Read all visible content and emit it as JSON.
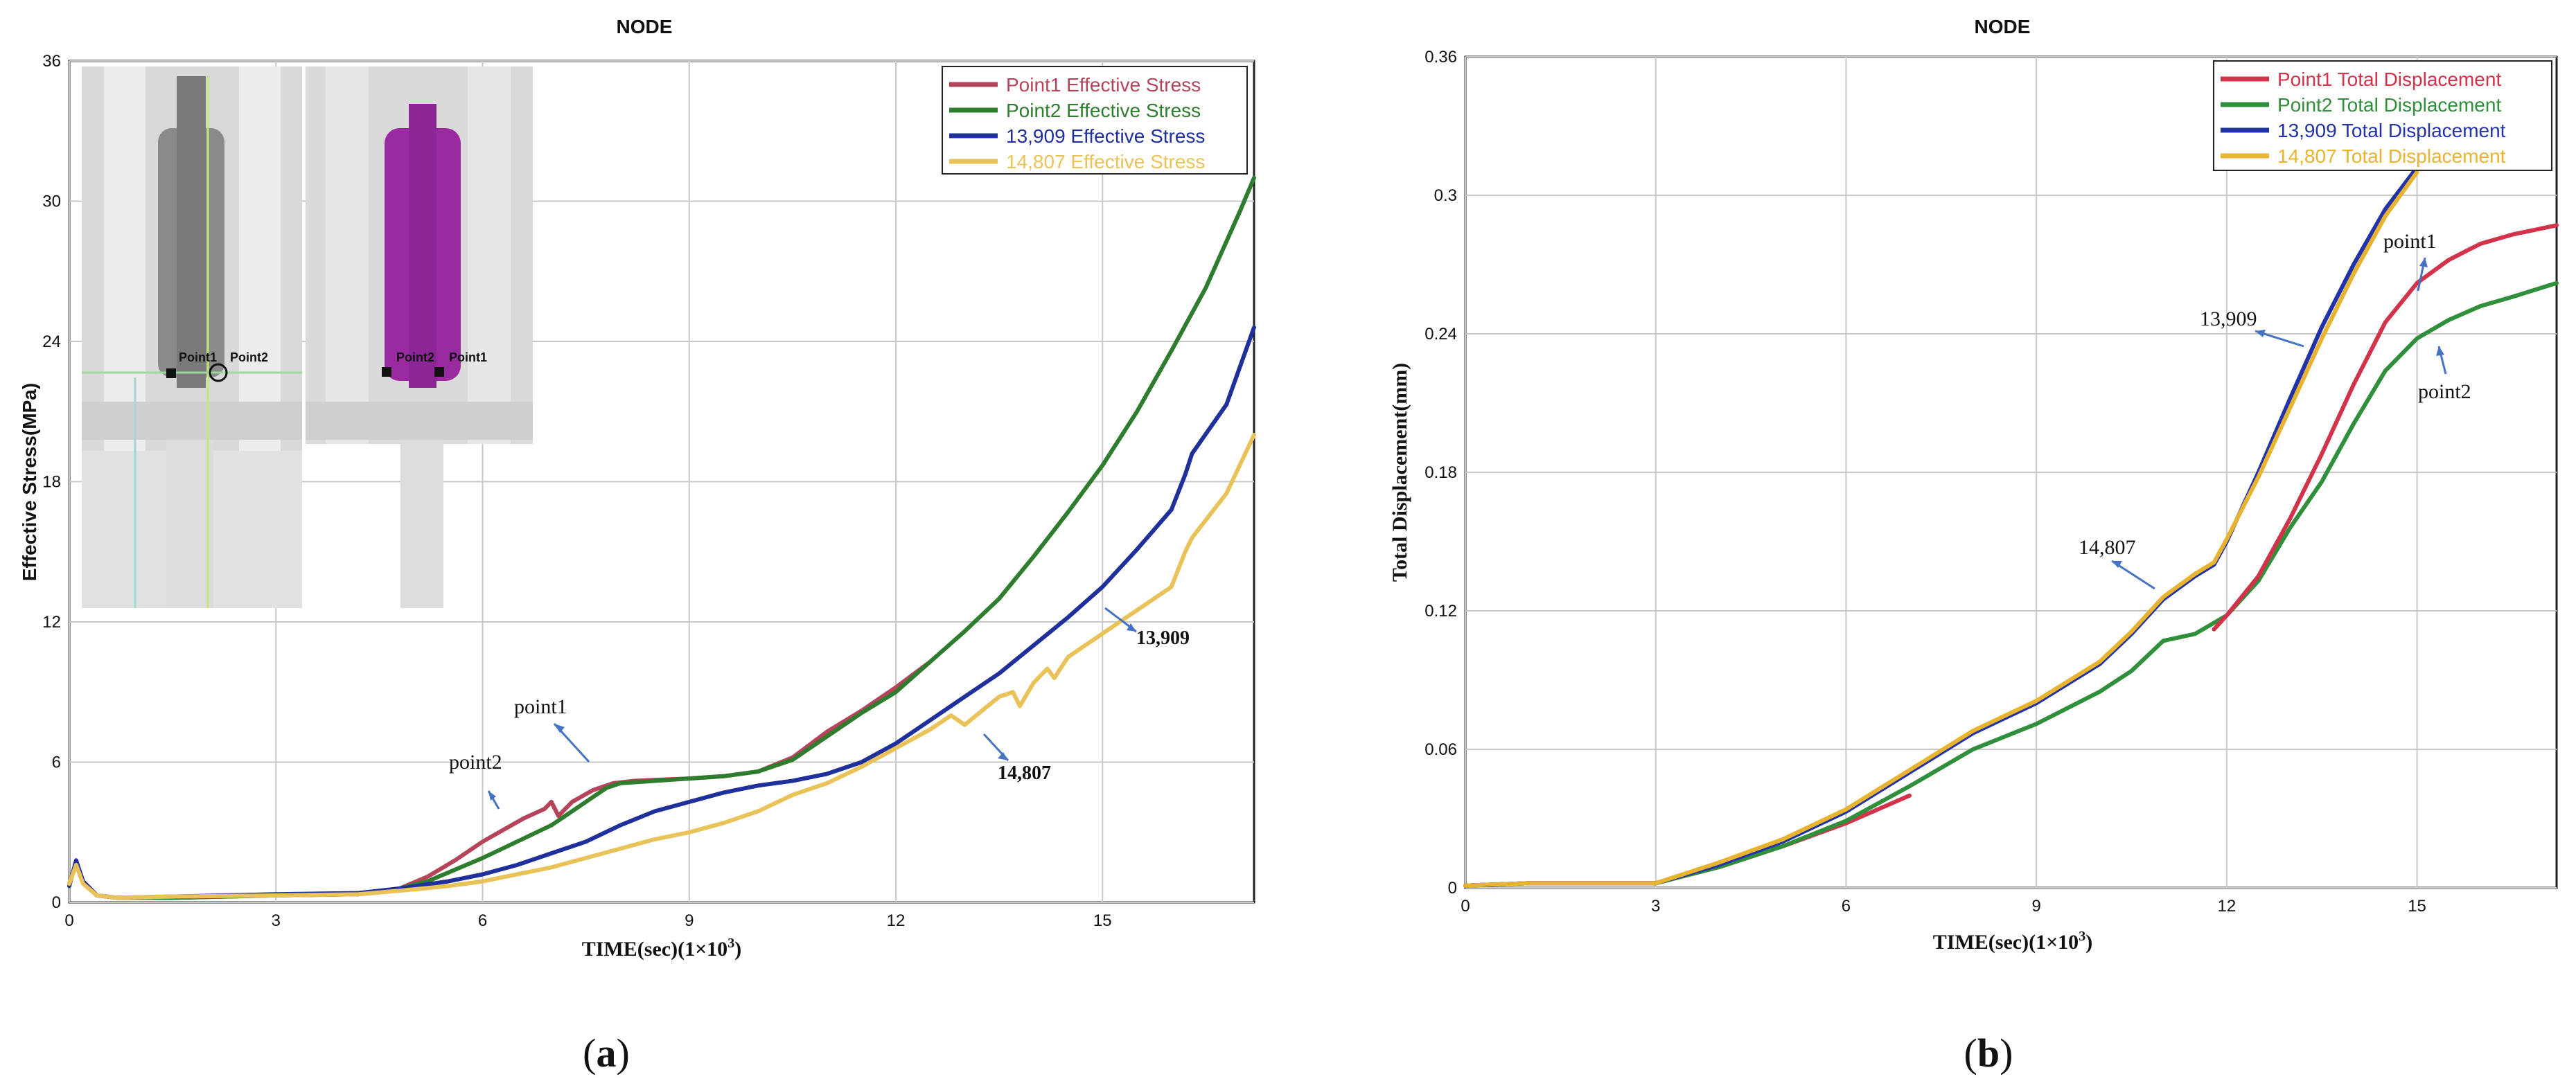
{
  "chart_data": [
    {
      "type": "line",
      "title": "NODE",
      "xlabel": "TIME(sec)(1×10",
      "xlabel_sup": "3",
      "xlabel_end": ")",
      "ylabel": "Effective Stress(MPa)",
      "xlim": [
        0,
        17.2
      ],
      "ylim": [
        0,
        36
      ],
      "xticks": [
        "0",
        "3",
        "6",
        "9",
        "12",
        "15"
      ],
      "xtick_values": [
        0,
        3,
        6,
        9,
        12,
        15
      ],
      "yticks": [
        "0",
        "6",
        "12",
        "18",
        "24",
        "30",
        "36"
      ],
      "ytick_values": [
        0,
        6,
        12,
        18,
        24,
        30,
        36
      ],
      "grid": true,
      "legend_position": "top-right",
      "caption_open": "(",
      "caption_letter": "a",
      "caption_close": ")",
      "series": [
        {
          "name": "Point1 Effective Stress",
          "color": "#b5435a",
          "x": [
            0,
            0.1,
            0.2,
            0.4,
            0.7,
            1.5,
            3,
            4.2,
            4.8,
            5.2,
            5.6,
            6.0,
            6.3,
            6.6,
            6.9,
            7.0,
            7.1,
            7.3,
            7.6,
            7.9,
            8.2,
            8.6,
            9.0,
            9.5,
            10.0,
            10.5,
            11.0,
            11.5,
            12.0,
            12.5
          ],
          "y": [
            0.8,
            1.7,
            0.9,
            0.3,
            0.2,
            0.2,
            0.3,
            0.35,
            0.6,
            1.1,
            1.8,
            2.6,
            3.1,
            3.6,
            4.0,
            4.3,
            3.7,
            4.3,
            4.8,
            5.1,
            5.2,
            5.25,
            5.3,
            5.4,
            5.6,
            6.2,
            7.3,
            8.2,
            9.2,
            10.3
          ]
        },
        {
          "name": "Point2 Effective Stress",
          "color": "#2e7d2e",
          "x": [
            0,
            0.1,
            0.2,
            0.4,
            0.7,
            1.5,
            3,
            4.2,
            4.8,
            5.2,
            5.6,
            6.0,
            6.5,
            7.0,
            7.5,
            7.8,
            8.0,
            8.5,
            9.0,
            9.5,
            10.0,
            10.5,
            11.0,
            11.5,
            12.0,
            12.5,
            13.0,
            13.5,
            14.0,
            14.5,
            15.0,
            15.5,
            16.0,
            16.5,
            17.0,
            17.2
          ],
          "y": [
            0.8,
            1.7,
            0.9,
            0.3,
            0.2,
            0.2,
            0.3,
            0.35,
            0.6,
            0.9,
            1.4,
            1.9,
            2.6,
            3.3,
            4.3,
            4.9,
            5.1,
            5.2,
            5.3,
            5.4,
            5.6,
            6.1,
            7.1,
            8.1,
            9.0,
            10.3,
            11.6,
            13.0,
            14.8,
            16.7,
            18.7,
            21.0,
            23.6,
            26.3,
            29.6,
            31.0
          ]
        },
        {
          "name": "13,909 Effective Stress",
          "color": "#1f2f9c",
          "x": [
            0,
            0.1,
            0.2,
            0.4,
            0.7,
            1.5,
            3,
            4.2,
            4.8,
            5.5,
            6.0,
            6.5,
            7.0,
            7.5,
            8.0,
            8.5,
            9.0,
            9.5,
            10.0,
            10.5,
            11.0,
            11.5,
            12.0,
            12.5,
            13.0,
            13.5,
            14.0,
            14.5,
            15.0,
            15.5,
            16.0,
            16.2,
            16.3,
            16.8,
            17.2
          ],
          "y": [
            0.7,
            1.8,
            0.9,
            0.3,
            0.2,
            0.25,
            0.35,
            0.4,
            0.6,
            0.9,
            1.2,
            1.6,
            2.1,
            2.6,
            3.3,
            3.9,
            4.3,
            4.7,
            5.0,
            5.2,
            5.5,
            6.0,
            6.8,
            7.8,
            8.8,
            9.8,
            11.0,
            12.2,
            13.5,
            15.1,
            16.8,
            18.3,
            19.2,
            21.3,
            24.6
          ]
        },
        {
          "name": "14,807 Effective Stress",
          "color": "#e9c35a",
          "x": [
            0,
            0.1,
            0.2,
            0.4,
            0.7,
            1.5,
            3,
            4.2,
            4.8,
            5.5,
            6.0,
            6.5,
            7.0,
            7.5,
            8.0,
            8.5,
            9.0,
            9.5,
            10.0,
            10.5,
            11.0,
            11.5,
            12.0,
            12.5,
            12.8,
            13.0,
            13.5,
            13.7,
            13.8,
            14.0,
            14.2,
            14.3,
            14.5,
            15.0,
            15.5,
            16.0,
            16.2,
            16.3,
            16.8,
            17.2
          ],
          "y": [
            0.8,
            1.6,
            0.8,
            0.3,
            0.2,
            0.25,
            0.3,
            0.35,
            0.5,
            0.7,
            0.9,
            1.2,
            1.5,
            1.9,
            2.3,
            2.7,
            3.0,
            3.4,
            3.9,
            4.6,
            5.1,
            5.8,
            6.6,
            7.4,
            8.0,
            7.6,
            8.8,
            9.0,
            8.4,
            9.4,
            10.0,
            9.6,
            10.5,
            11.5,
            12.5,
            13.5,
            15.0,
            15.6,
            17.5,
            20.0
          ]
        }
      ],
      "annotations": [
        "point1",
        "point2",
        "13,909",
        "14,807"
      ],
      "inset_labels": [
        "Point1",
        "Point2",
        "Point2",
        "Point1"
      ]
    },
    {
      "type": "line",
      "title": "NODE",
      "xlabel": "TIME(sec)(1×10",
      "xlabel_sup": "3",
      "xlabel_end": ")",
      "ylabel": "Total Displacement(mm)",
      "xlim": [
        0,
        17.2
      ],
      "ylim": [
        0,
        0.36
      ],
      "xticks": [
        "0",
        "3",
        "6",
        "9",
        "12",
        "15"
      ],
      "xtick_values": [
        0,
        3,
        6,
        9,
        12,
        15
      ],
      "yticks": [
        "0",
        "0.06",
        "0.12",
        "0.18",
        "0.24",
        "0.3",
        "0.36"
      ],
      "ytick_values": [
        0,
        0.06,
        0.12,
        0.18,
        0.24,
        0.3,
        0.36
      ],
      "grid": true,
      "legend_position": "top-right",
      "caption_open": "(",
      "caption_letter": "b",
      "caption_close": ")",
      "series": [
        {
          "name": "Point1 Total Displacement",
          "color": "#d2334a",
          "x": [
            0,
            1,
            3,
            4,
            5,
            6,
            6.5,
            7.0
          ],
          "y": [
            0.001,
            0.002,
            0.002,
            0.009,
            0.018,
            0.028,
            0.034,
            0.04
          ]
        },
        {
          "name": "Point2 Total Displacement",
          "color": "#2f8f3a",
          "x": [
            0,
            1,
            3,
            4,
            5,
            6,
            7,
            8,
            9,
            10,
            10.5,
            11,
            11.5,
            12,
            12.5,
            13,
            13.5,
            14,
            14.5,
            15,
            15.5,
            16,
            16.5,
            17.2
          ],
          "y": [
            0.001,
            0.002,
            0.002,
            0.009,
            0.018,
            0.029,
            0.044,
            0.06,
            0.071,
            0.085,
            0.094,
            0.107,
            0.11,
            0.118,
            0.133,
            0.156,
            0.176,
            0.201,
            0.224,
            0.238,
            0.246,
            0.252,
            0.256,
            0.262
          ]
        },
        {
          "name": "13,909 Total Displacement",
          "color": "#2233aa",
          "x": [
            0,
            1,
            3,
            4,
            5,
            6,
            7,
            8,
            9,
            10,
            10.5,
            11,
            11.5,
            11.8,
            12.0,
            12.5,
            13.0,
            13.5,
            14.0,
            14.5,
            15.0
          ],
          "y": [
            0.001,
            0.002,
            0.002,
            0.01,
            0.02,
            0.033,
            0.05,
            0.067,
            0.08,
            0.097,
            0.11,
            0.125,
            0.135,
            0.14,
            0.15,
            0.18,
            0.212,
            0.243,
            0.27,
            0.294,
            0.312
          ]
        },
        {
          "name": "14,807 Total Displacement",
          "color": "#e8b32f",
          "x": [
            0,
            1,
            3,
            4,
            5,
            6,
            7,
            8,
            9,
            10,
            10.5,
            11,
            11.5,
            11.8,
            12.0,
            12.5,
            13.0,
            13.5,
            14.0,
            14.5,
            15.0
          ],
          "y": [
            0.001,
            0.002,
            0.002,
            0.011,
            0.021,
            0.034,
            0.051,
            0.068,
            0.081,
            0.098,
            0.111,
            0.126,
            0.136,
            0.141,
            0.151,
            0.178,
            0.208,
            0.238,
            0.266,
            0.291,
            0.31
          ]
        },
        {
          "name": "Point1 Total Displacement (cont.)",
          "color": "#d2334a",
          "x": [
            11.8,
            12.0,
            12.5,
            13.0,
            13.5,
            14.0,
            14.5,
            15.0,
            15.5,
            16.0,
            16.5,
            17.2
          ],
          "y": [
            0.112,
            0.118,
            0.135,
            0.16,
            0.188,
            0.218,
            0.245,
            0.262,
            0.272,
            0.279,
            0.283,
            0.287
          ]
        }
      ],
      "annotations": [
        "point1",
        "point2",
        "13,909",
        "14,807"
      ]
    }
  ]
}
